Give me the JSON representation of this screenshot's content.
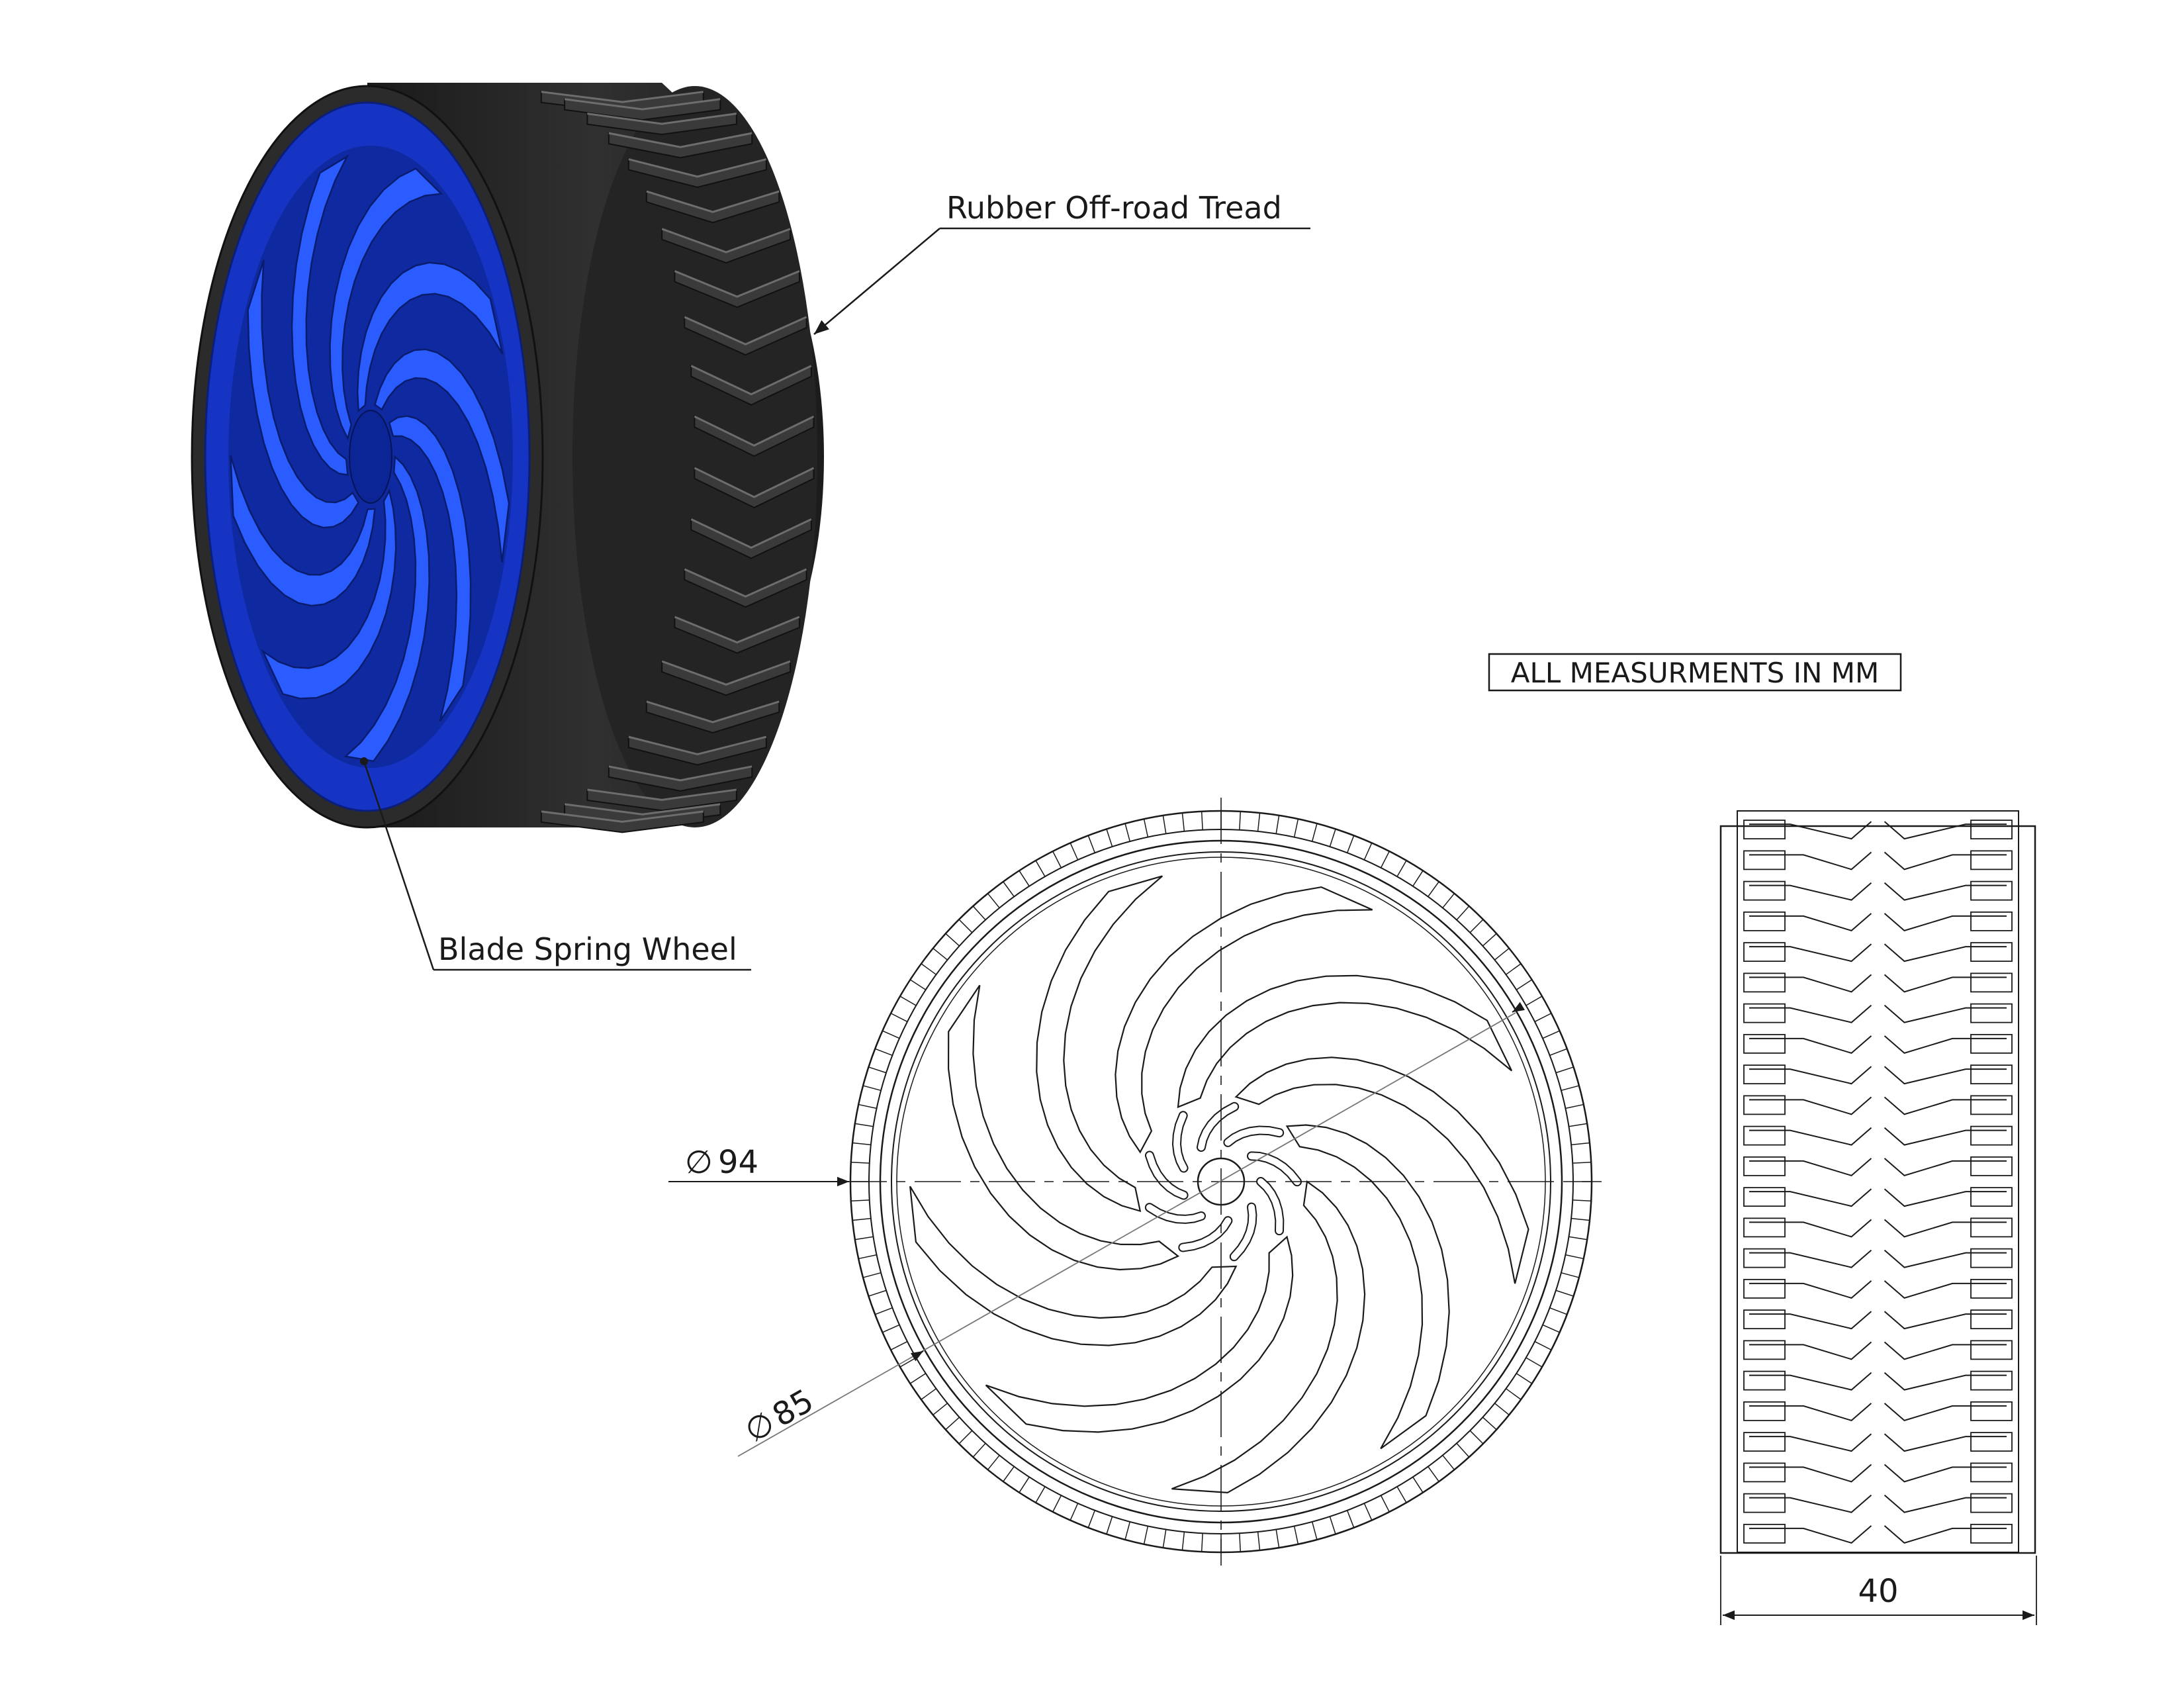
{
  "labels": {
    "tread": "Rubber Off-road Tread",
    "wheel": "Blade Spring Wheel",
    "units": "ALL MEASURMENTS IN MM"
  },
  "dimensions": {
    "outer_diameter": "94",
    "inner_diameter": "85",
    "width": "40",
    "diameter_symbol": "∅"
  },
  "colors": {
    "wheel_blue": "#1f4ee8",
    "wheel_blue_dark": "#0c2596",
    "tread_black": "#262626",
    "tread_highlight": "#6d6d6d",
    "line": "#1a1a1a"
  }
}
